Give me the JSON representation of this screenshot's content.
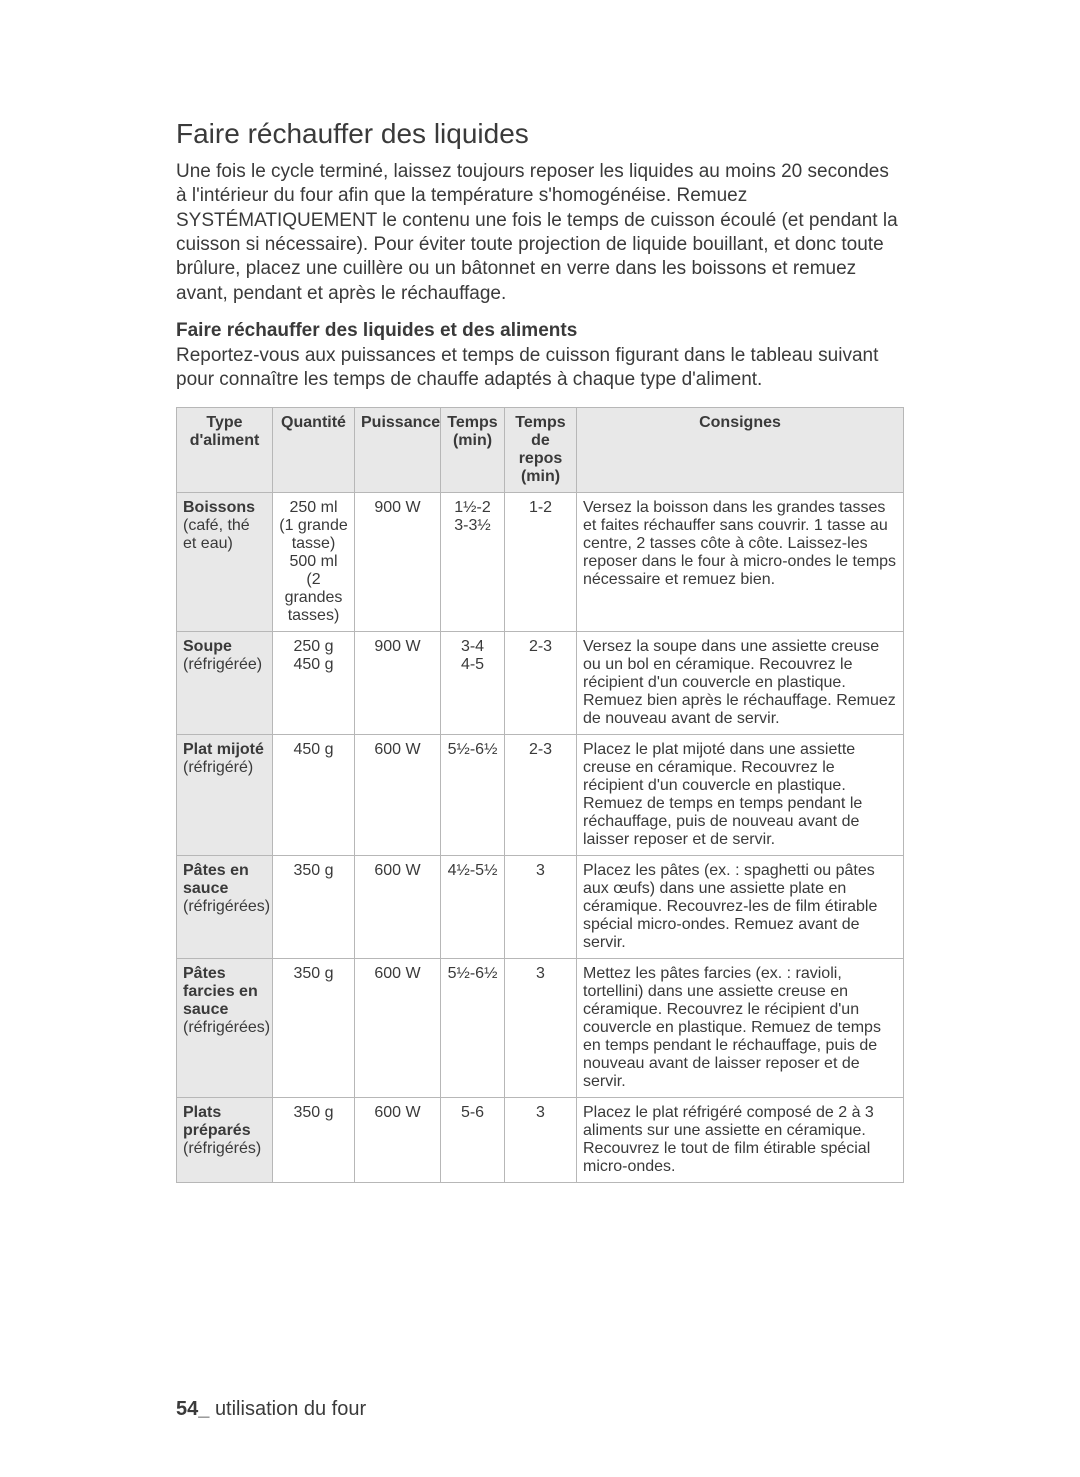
{
  "heading": "Faire réchauffer des liquides",
  "intro": "Une fois le cycle terminé, laissez toujours reposer les liquides au moins 20 secondes à l'intérieur du four afin que la température s'homogénéise. Remuez SYSTÉMATIQUEMENT le contenu une fois le temps de cuisson écoulé (et pendant la cuisson si nécessaire). Pour éviter toute projection de liquide bouillant, et donc toute brûlure, placez une cuillère ou un bâtonnet en verre dans les boissons et remuez avant, pendant et après le réchauffage.",
  "subhead": "Faire réchauffer des liquides et des aliments",
  "subintro": "Reportez-vous aux puissances et temps de cuisson figurant dans le tableau suivant pour connaître les temps de chauffe adaptés à chaque type d'aliment.",
  "table": {
    "headers": {
      "type": "Type d'aliment",
      "qty": "Quantité",
      "power": "Puissance",
      "time": "Temps (min)",
      "rest": "Temps de repos (min)",
      "instr": "Consignes"
    },
    "rows": [
      {
        "type_bold": "Boissons",
        "type_rest": "(café, thé et eau)",
        "qty": "250 ml\n(1 grande tasse)\n500 ml\n(2 grandes tasses)",
        "power": "900 W",
        "time": "1½-2\n3-3½",
        "rest": "1-2",
        "instr": "Versez la boisson dans les grandes tasses et faites réchauffer sans couvrir. 1 tasse au centre, 2 tasses côte à côte. Laissez-les reposer dans le four à micro-ondes le temps nécessaire et remuez bien."
      },
      {
        "type_bold": "Soupe",
        "type_rest": "(réfrigérée)",
        "qty": "250 g\n450 g",
        "power": "900 W",
        "time": "3-4\n4-5",
        "rest": "2-3",
        "instr": "Versez la soupe dans une assiette creuse ou un bol en céramique. Recouvrez le récipient d'un couvercle en plastique. Remuez bien après le réchauffage. Remuez de nouveau avant de servir."
      },
      {
        "type_bold": "Plat mijoté",
        "type_rest": "(réfrigéré)",
        "qty": "450 g",
        "power": "600 W",
        "time": "5½-6½",
        "rest": "2-3",
        "instr": "Placez le plat mijoté dans une assiette creuse en céramique. Recouvrez le récipient d'un couvercle en plastique. Remuez de temps en temps pendant le réchauffage, puis de nouveau avant de laisser reposer et de servir."
      },
      {
        "type_bold": "Pâtes en sauce",
        "type_rest": "(réfrigérées)",
        "qty": "350 g",
        "power": "600 W",
        "time": "4½-5½",
        "rest": "3",
        "instr": "Placez les pâtes (ex. : spaghetti ou pâtes aux œufs) dans une assiette plate en céramique. Recouvrez-les de film étirable spécial micro-ondes. Remuez avant de servir."
      },
      {
        "type_bold": "Pâtes farcies en sauce",
        "type_rest": "(réfrigérées)",
        "qty": "350 g",
        "power": "600 W",
        "time": "5½-6½",
        "rest": "3",
        "instr": "Mettez les pâtes farcies (ex. : ravioli, tortellini) dans une assiette creuse en céramique. Recouvrez le récipient d'un couvercle en plastique. Remuez de temps en temps pendant le réchauffage, puis de nouveau avant de laisser reposer et de servir."
      },
      {
        "type_bold": "Plats préparés",
        "type_rest": "(réfrigérés)",
        "qty": "350 g",
        "power": "600 W",
        "time": "5-6",
        "rest": "3",
        "instr": "Placez le plat réfrigéré composé de 2 à 3 aliments sur une assiette en céramique. Recouvrez le tout de film étirable spécial micro-ondes."
      }
    ]
  },
  "footer": {
    "page": "54_",
    "section": "utilisation du four"
  }
}
